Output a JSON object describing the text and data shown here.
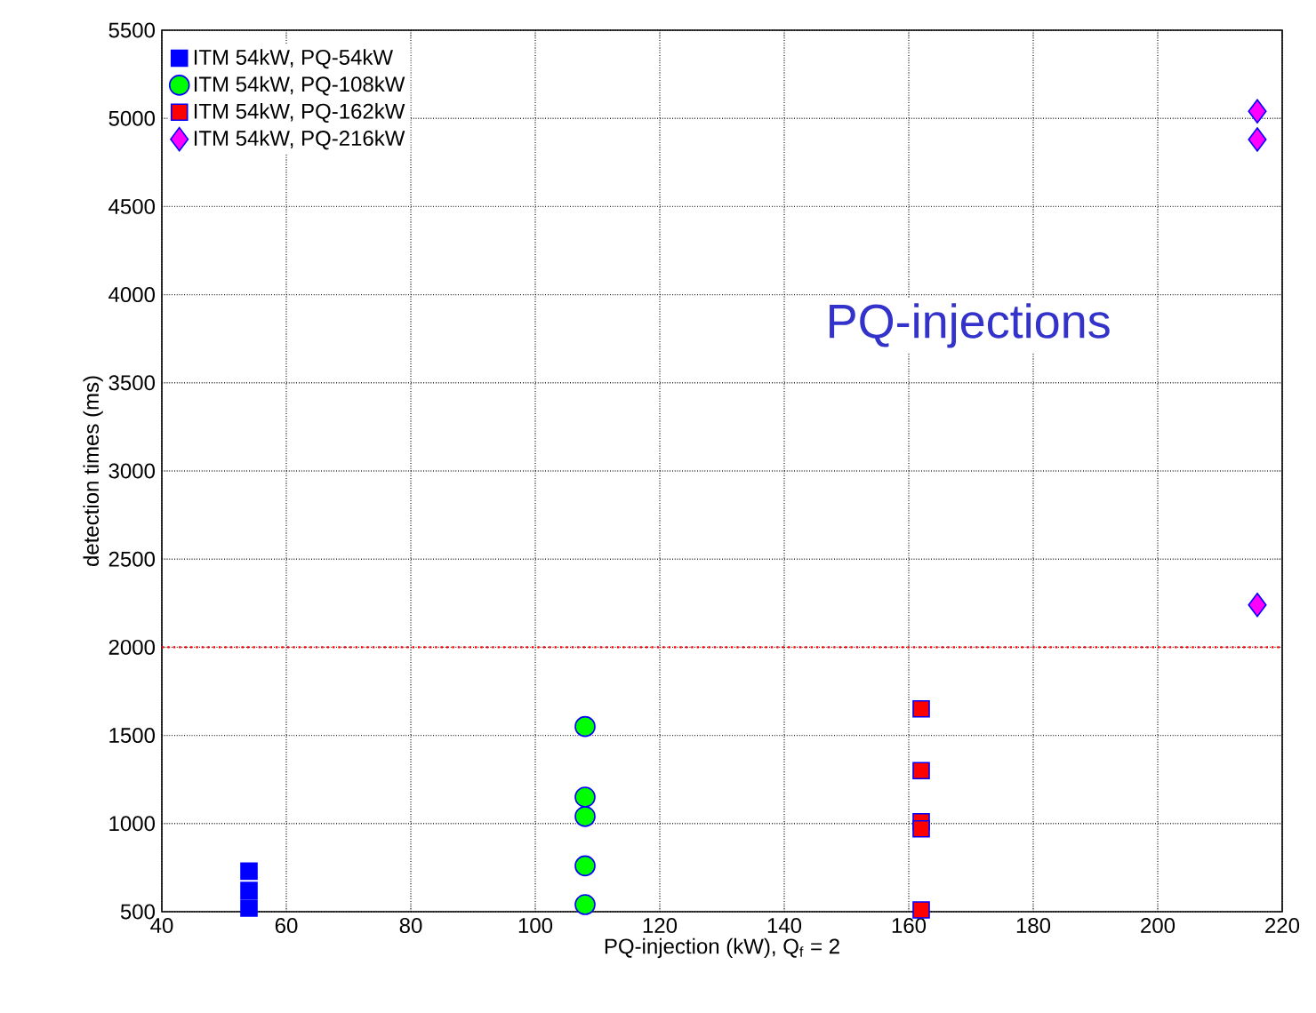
{
  "chart_data": {
    "type": "scatter",
    "xlabel": "PQ-injection (kW), Q$_{f}$ = 2",
    "ylabel": "detection times (ms)",
    "annotations": [
      "PQ-injections"
    ],
    "xlim": [
      40,
      220
    ],
    "xticks": [
      40,
      60,
      80,
      100,
      120,
      140,
      160,
      180,
      200,
      220
    ],
    "ylim": [
      500,
      5500
    ],
    "yticks": [
      500,
      1000,
      1500,
      2000,
      2500,
      3000,
      3500,
      4000,
      4500,
      5000,
      5500
    ],
    "grid": true,
    "legend": "top left",
    "ref_lines": [
      {
        "axis": "y",
        "value": 2000,
        "color": "#ff0000",
        "line_style": "dotted"
      }
    ],
    "series": [
      {
        "name": "ITM 54kW, PQ-54kW",
        "color": "#0000ff",
        "marker": "square",
        "x": [
          54,
          54,
          54
        ],
        "values": [
          520,
          620,
          730
        ]
      },
      {
        "name": "ITM 54kW, PQ-108kW",
        "color": "#00ff00",
        "marker": "circle",
        "x": [
          108,
          108,
          108,
          108,
          108
        ],
        "values": [
          1550,
          1150,
          1040,
          760,
          540
        ]
      },
      {
        "name": "ITM 54kW, PQ-162kW",
        "color": "#ff0000",
        "marker": "square",
        "x": [
          162,
          162,
          162,
          162,
          162
        ],
        "values": [
          1650,
          1300,
          1010,
          970,
          510
        ]
      },
      {
        "name": "ITM 54kW, PQ-216kW",
        "color": "#ff00ff",
        "marker": "diamond",
        "x": [
          216,
          216,
          216
        ],
        "values": [
          5040,
          4880,
          2240
        ]
      }
    ]
  }
}
